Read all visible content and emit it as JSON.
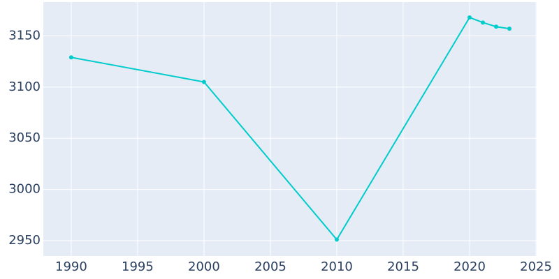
{
  "chart_data": {
    "type": "line",
    "x": [
      1990,
      2000,
      2010,
      2020,
      2021,
      2022,
      2023
    ],
    "series": [
      {
        "color": "#00cccc",
        "values": [
          3129,
          3105,
          2951,
          3168,
          3163,
          3159,
          3157
        ]
      }
    ],
    "xlim": [
      1987.9,
      2025.05
    ],
    "xticks": [
      1990,
      1995,
      2000,
      2005,
      2010,
      2015,
      2020,
      2025
    ],
    "ylim": [
      2935,
      3183
    ],
    "yticks": [
      2950,
      3000,
      3050,
      3100,
      3150
    ],
    "grid": true
  }
}
